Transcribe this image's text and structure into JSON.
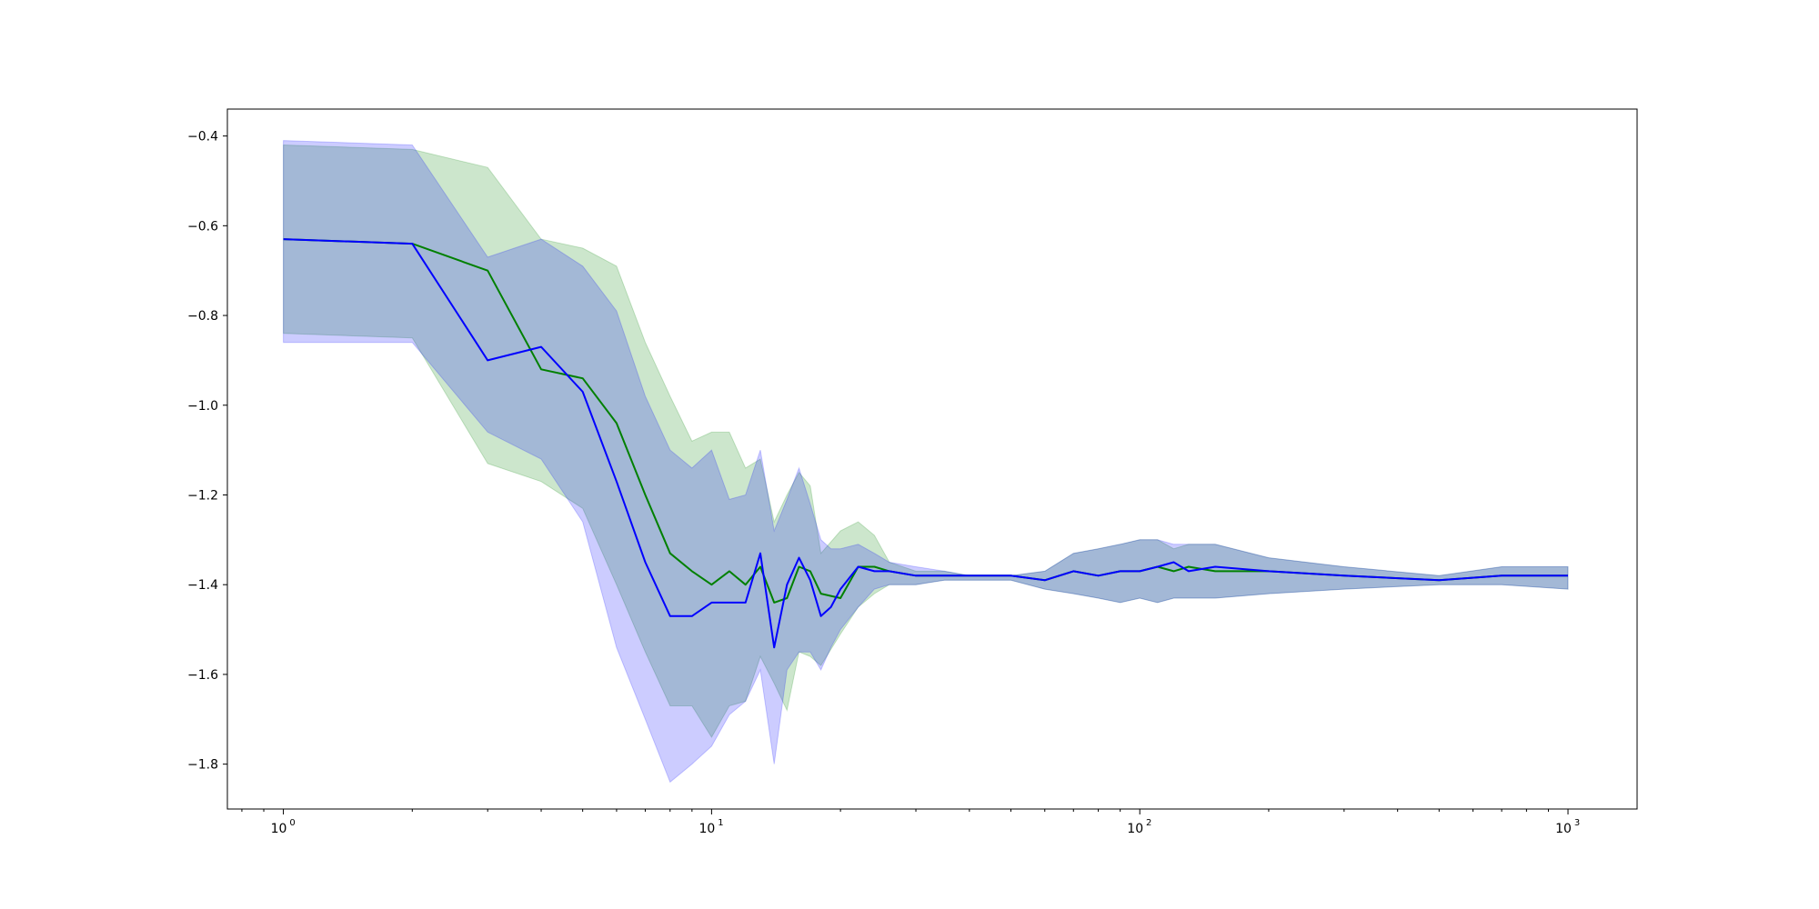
{
  "chart_data": {
    "type": "line",
    "title": "",
    "xlabel": "",
    "ylabel": "",
    "xscale": "log",
    "xlim": [
      0.74,
      1450
    ],
    "ylim": [
      -1.9,
      -0.34
    ],
    "grid": false,
    "y_ticks": [
      -0.4,
      -0.6,
      -0.8,
      -1.0,
      -1.2,
      -1.4,
      -1.6,
      -1.8
    ],
    "y_tick_labels": [
      "−0.4",
      "−0.6",
      "−0.8",
      "−1.0",
      "−1.2",
      "−1.4",
      "−1.6",
      "−1.8"
    ],
    "x_ticks": [
      1,
      10,
      100,
      1000
    ],
    "x_tick_labels": [
      {
        "base": "10",
        "exp": "0"
      },
      {
        "base": "10",
        "exp": "1"
      },
      {
        "base": "10",
        "exp": "2"
      },
      {
        "base": "10",
        "exp": "3"
      }
    ],
    "series": [
      {
        "color": "#008000",
        "band_color": "#008000",
        "x": [
          1,
          2,
          3,
          4,
          5,
          6,
          7,
          8,
          9,
          10,
          11,
          12,
          13,
          14,
          15,
          16,
          17,
          18,
          20,
          22,
          24,
          26,
          30,
          35,
          40,
          50,
          60,
          70,
          80,
          90,
          100,
          110,
          120,
          130,
          150,
          200,
          300,
          500,
          700,
          1000
        ],
        "y": [
          -0.63,
          -0.64,
          -0.7,
          -0.92,
          -0.94,
          -1.04,
          -1.2,
          -1.33,
          -1.37,
          -1.4,
          -1.37,
          -1.4,
          -1.36,
          -1.44,
          -1.43,
          -1.36,
          -1.37,
          -1.42,
          -1.43,
          -1.36,
          -1.36,
          -1.37,
          -1.38,
          -1.38,
          -1.38,
          -1.38,
          -1.39,
          -1.37,
          -1.38,
          -1.37,
          -1.37,
          -1.36,
          -1.37,
          -1.36,
          -1.37,
          -1.37,
          -1.38,
          -1.39,
          -1.38,
          -1.38
        ],
        "upper": [
          -0.42,
          -0.43,
          -0.47,
          -0.63,
          -0.65,
          -0.69,
          -0.86,
          -0.98,
          -1.08,
          -1.06,
          -1.06,
          -1.14,
          -1.12,
          -1.26,
          -1.2,
          -1.15,
          -1.18,
          -1.33,
          -1.28,
          -1.26,
          -1.29,
          -1.35,
          -1.37,
          -1.37,
          -1.38,
          -1.38,
          -1.37,
          -1.33,
          -1.32,
          -1.31,
          -1.3,
          -1.3,
          -1.32,
          -1.31,
          -1.31,
          -1.34,
          -1.36,
          -1.38,
          -1.36,
          -1.36
        ],
        "lower": [
          -0.84,
          -0.85,
          -1.13,
          -1.17,
          -1.23,
          -1.4,
          -1.55,
          -1.67,
          -1.67,
          -1.74,
          -1.67,
          -1.66,
          -1.56,
          -1.62,
          -1.68,
          -1.55,
          -1.56,
          -1.58,
          -1.51,
          -1.45,
          -1.42,
          -1.4,
          -1.4,
          -1.39,
          -1.39,
          -1.39,
          -1.41,
          -1.42,
          -1.43,
          -1.44,
          -1.43,
          -1.44,
          -1.43,
          -1.43,
          -1.43,
          -1.42,
          -1.41,
          -1.4,
          -1.4,
          -1.41
        ]
      },
      {
        "color": "#0000ff",
        "band_color": "#0000ff",
        "x": [
          1,
          2,
          3,
          4,
          5,
          6,
          7,
          8,
          9,
          10,
          11,
          12,
          13,
          14,
          15,
          16,
          17,
          18,
          19,
          20,
          22,
          24,
          26,
          30,
          35,
          40,
          50,
          60,
          70,
          80,
          90,
          100,
          110,
          120,
          130,
          150,
          200,
          300,
          500,
          700,
          1000
        ],
        "y": [
          -0.63,
          -0.64,
          -0.9,
          -0.87,
          -0.97,
          -1.17,
          -1.35,
          -1.47,
          -1.47,
          -1.44,
          -1.44,
          -1.44,
          -1.33,
          -1.54,
          -1.4,
          -1.34,
          -1.39,
          -1.47,
          -1.45,
          -1.41,
          -1.36,
          -1.37,
          -1.37,
          -1.38,
          -1.38,
          -1.38,
          -1.38,
          -1.39,
          -1.37,
          -1.38,
          -1.37,
          -1.37,
          -1.36,
          -1.35,
          -1.37,
          -1.36,
          -1.37,
          -1.38,
          -1.39,
          -1.38,
          -1.38
        ],
        "upper": [
          -0.41,
          -0.42,
          -0.67,
          -0.63,
          -0.69,
          -0.79,
          -0.98,
          -1.1,
          -1.14,
          -1.1,
          -1.21,
          -1.2,
          -1.1,
          -1.28,
          -1.21,
          -1.14,
          -1.22,
          -1.3,
          -1.32,
          -1.32,
          -1.31,
          -1.33,
          -1.35,
          -1.36,
          -1.37,
          -1.38,
          -1.38,
          -1.37,
          -1.33,
          -1.32,
          -1.31,
          -1.3,
          -1.3,
          -1.31,
          -1.31,
          -1.31,
          -1.34,
          -1.36,
          -1.38,
          -1.36,
          -1.36
        ],
        "lower": [
          -0.86,
          -0.86,
          -1.06,
          -1.12,
          -1.26,
          -1.54,
          -1.7,
          -1.84,
          -1.8,
          -1.76,
          -1.69,
          -1.66,
          -1.59,
          -1.8,
          -1.59,
          -1.55,
          -1.55,
          -1.59,
          -1.54,
          -1.5,
          -1.45,
          -1.41,
          -1.4,
          -1.4,
          -1.39,
          -1.39,
          -1.39,
          -1.41,
          -1.42,
          -1.43,
          -1.44,
          -1.43,
          -1.44,
          -1.43,
          -1.43,
          -1.43,
          -1.42,
          -1.41,
          -1.4,
          -1.4,
          -1.41
        ]
      }
    ]
  }
}
